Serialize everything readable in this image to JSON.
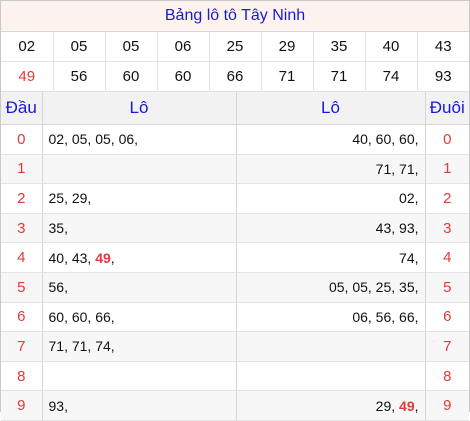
{
  "title": "Bảng lô tô Tây Ninh",
  "numbers_row1": [
    "02",
    "05",
    "05",
    "06",
    "25",
    "29",
    "35",
    "40",
    "43"
  ],
  "numbers_row2": [
    "49",
    "56",
    "60",
    "60",
    "66",
    "71",
    "71",
    "74",
    "93"
  ],
  "header": {
    "dau": "Đầu",
    "lo_left": "Lô",
    "lo_right": "Lô",
    "duoi": "Đuôi"
  },
  "rows": [
    {
      "dau": "0",
      "left": [
        {
          "t": "02, "
        },
        {
          "t": "05, "
        },
        {
          "t": "05, "
        },
        {
          "t": "06, "
        }
      ],
      "right": [
        {
          "t": "40, "
        },
        {
          "t": "60, "
        },
        {
          "t": "60, "
        }
      ],
      "duoi": "0"
    },
    {
      "dau": "1",
      "left": [],
      "right": [
        {
          "t": "71, "
        },
        {
          "t": "71, "
        }
      ],
      "duoi": "1"
    },
    {
      "dau": "2",
      "left": [
        {
          "t": "25, "
        },
        {
          "t": "29, "
        }
      ],
      "right": [
        {
          "t": "02, "
        }
      ],
      "duoi": "2"
    },
    {
      "dau": "3",
      "left": [
        {
          "t": "35, "
        }
      ],
      "right": [
        {
          "t": "43, "
        },
        {
          "t": "93, "
        }
      ],
      "duoi": "3"
    },
    {
      "dau": "4",
      "left": [
        {
          "t": "40, "
        },
        {
          "t": "43, "
        },
        {
          "t": "49",
          "hl": true
        },
        {
          "t": ", "
        }
      ],
      "right": [
        {
          "t": "74, "
        }
      ],
      "duoi": "4"
    },
    {
      "dau": "5",
      "left": [
        {
          "t": "56, "
        }
      ],
      "right": [
        {
          "t": "05, "
        },
        {
          "t": "05, "
        },
        {
          "t": "25, "
        },
        {
          "t": "35, "
        }
      ],
      "duoi": "5"
    },
    {
      "dau": "6",
      "left": [
        {
          "t": "60, "
        },
        {
          "t": "60, "
        },
        {
          "t": "66, "
        }
      ],
      "right": [
        {
          "t": "06, "
        },
        {
          "t": "56, "
        },
        {
          "t": "66, "
        }
      ],
      "duoi": "6"
    },
    {
      "dau": "7",
      "left": [
        {
          "t": "71, "
        },
        {
          "t": "71, "
        },
        {
          "t": "74, "
        }
      ],
      "right": [],
      "duoi": "7"
    },
    {
      "dau": "8",
      "left": [],
      "right": [],
      "duoi": "8"
    },
    {
      "dau": "9",
      "left": [
        {
          "t": "93, "
        }
      ],
      "right": [
        {
          "t": "29, "
        },
        {
          "t": "49",
          "hl": true
        },
        {
          "t": ", "
        }
      ],
      "duoi": "9"
    }
  ]
}
